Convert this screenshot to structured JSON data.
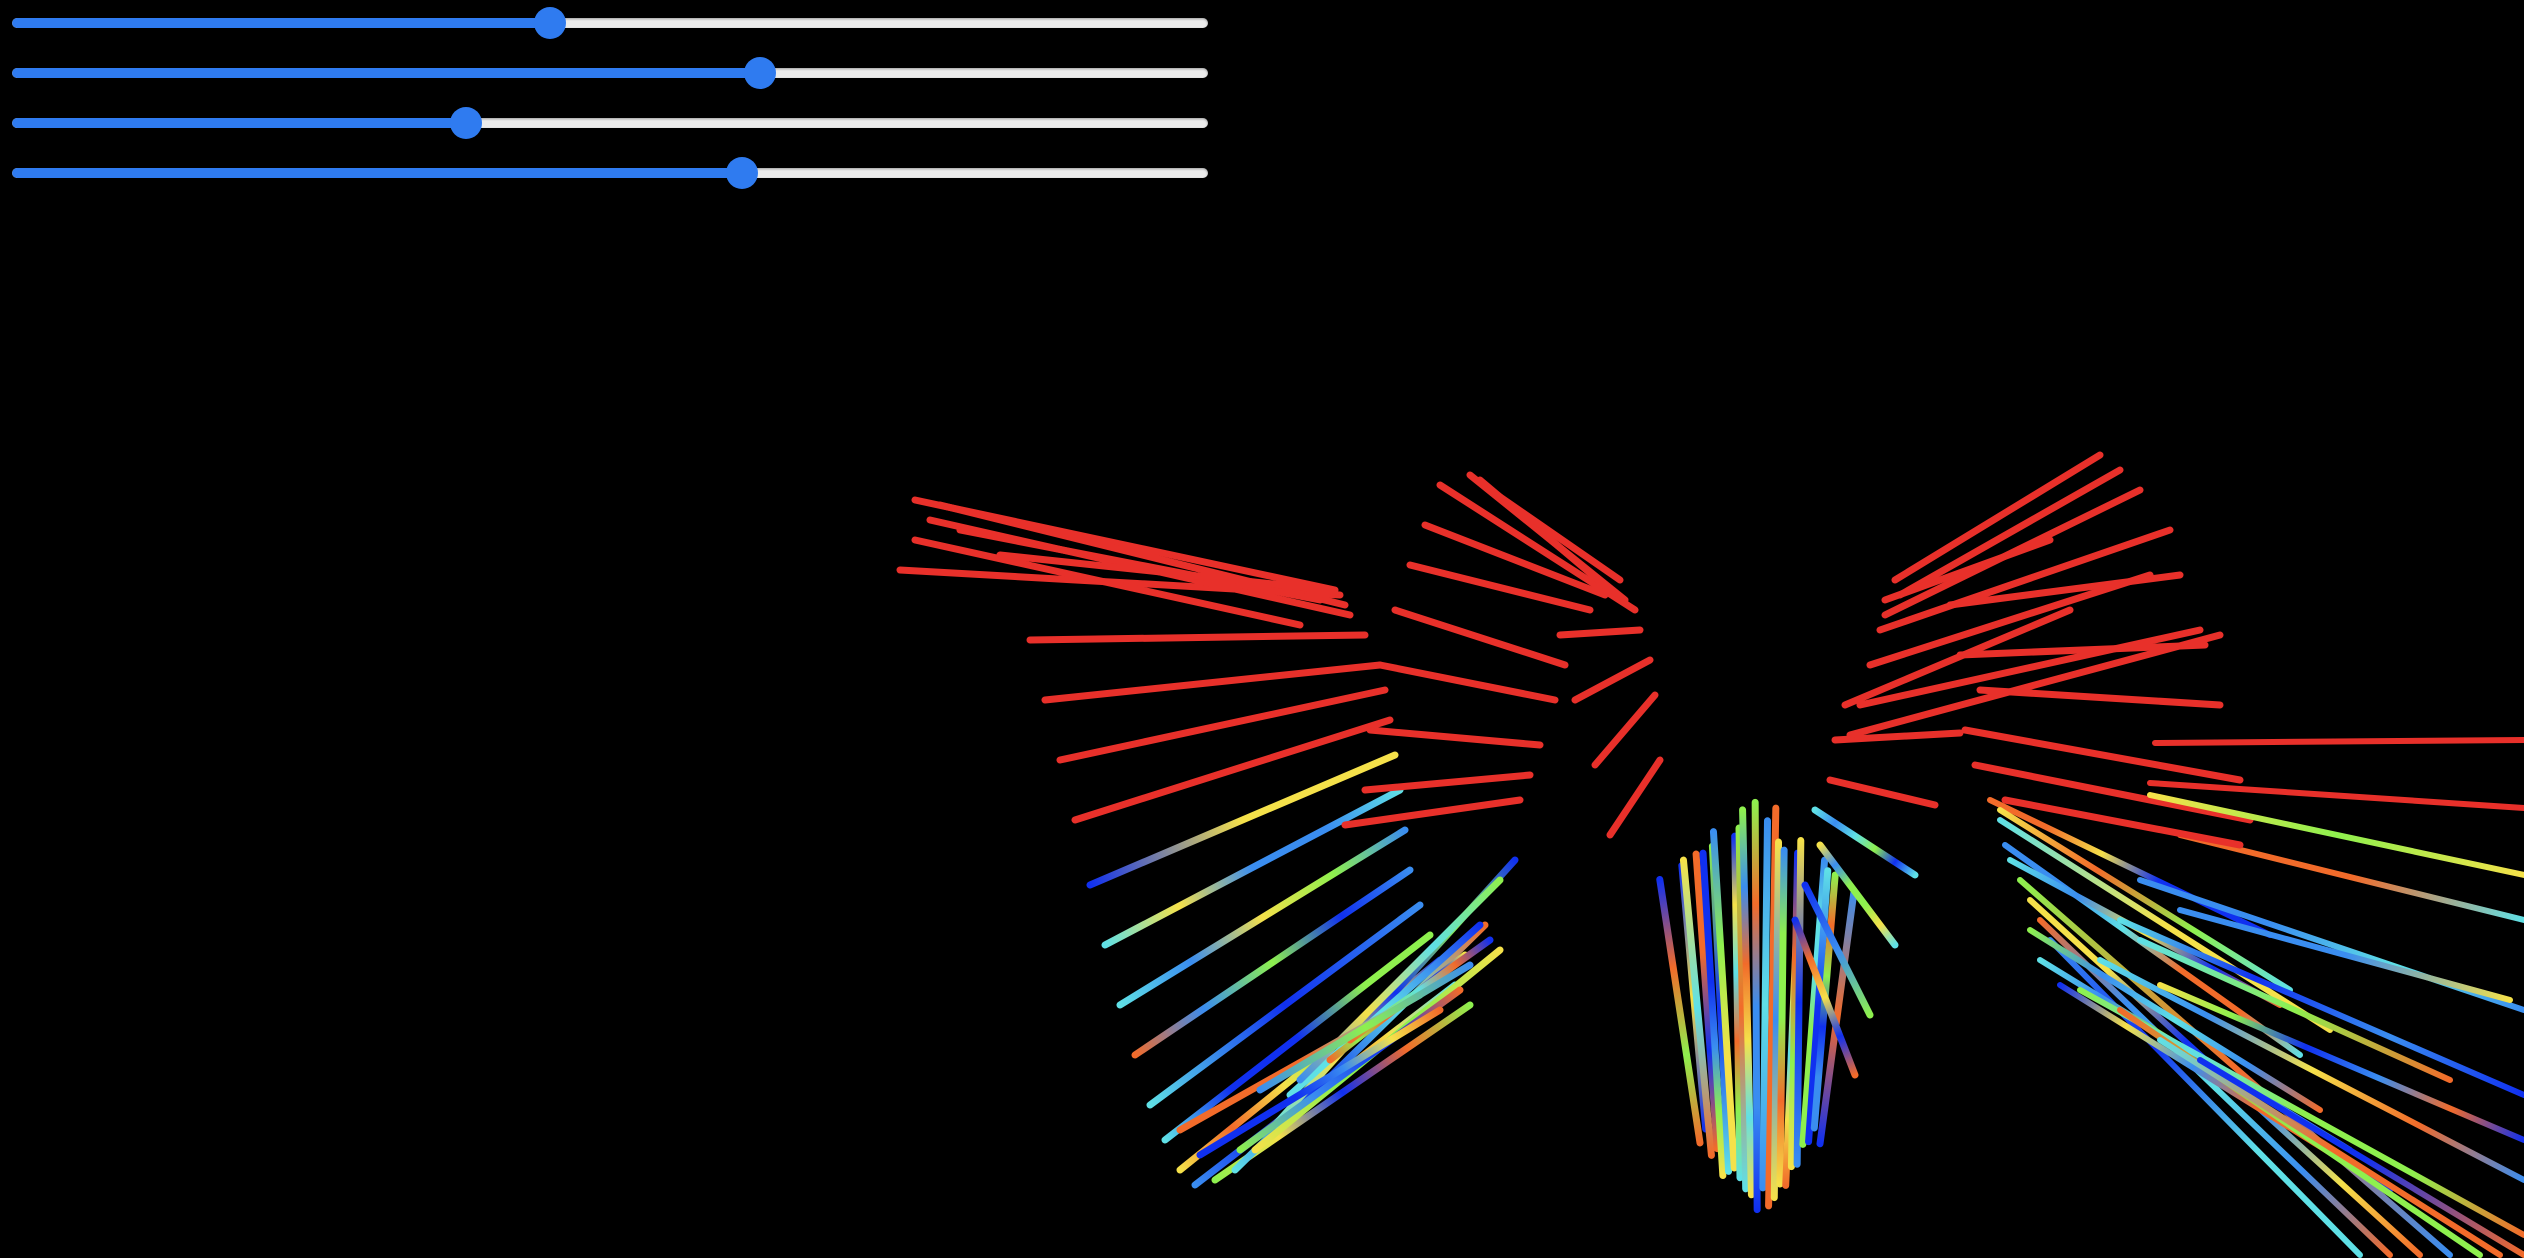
{
  "sliders": [
    {
      "id": "slider-1",
      "value": 0.45
    },
    {
      "id": "slider-2",
      "value": 0.625
    },
    {
      "id": "slider-3",
      "value": 0.38
    },
    {
      "id": "slider-4",
      "value": 0.61
    }
  ],
  "colors": {
    "background": "#000000",
    "slider_fill": "#2f7bf0",
    "slider_track": "#ececec",
    "line_palette": [
      "#e8302a",
      "#f26b2a",
      "#f5e14a",
      "#8ef04e",
      "#5fe0e6",
      "#3a8df0",
      "#1030f0"
    ]
  }
}
